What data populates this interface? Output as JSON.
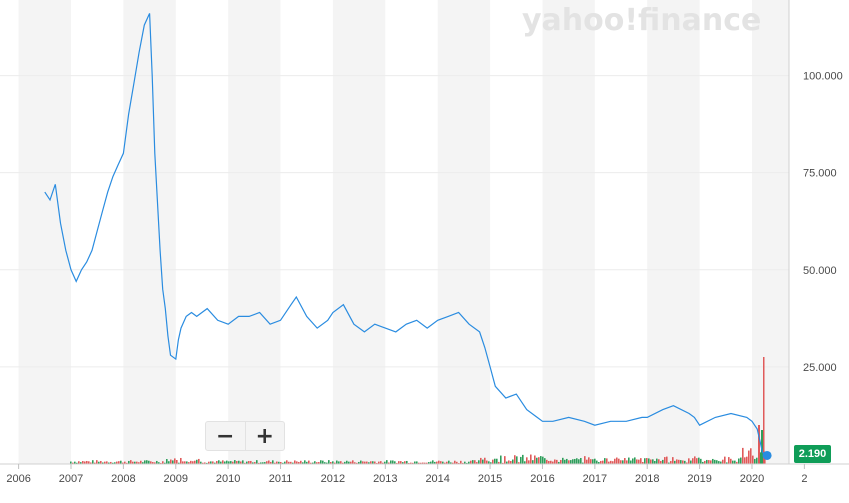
{
  "watermark": "yahoo!finance",
  "zoom": {
    "minus_label": "−",
    "plus_label": "+"
  },
  "price_badge": "2.190",
  "colors": {
    "line": "#2a8ce0",
    "band": "#f4f4f4",
    "volume_up": "#2e9e5b",
    "volume_down": "#e05a5a",
    "badge": "#0f9d58",
    "grid": "#ececec"
  },
  "chart_data": {
    "type": "line",
    "series": [
      {
        "values_x": [
          2006.5,
          2006.6,
          2006.7,
          2006.8,
          2006.9,
          2007.0,
          2007.1,
          2007.2,
          2007.3,
          2007.4,
          2007.5,
          2007.6,
          2007.7,
          2007.8,
          2007.9,
          2008.0,
          2008.1,
          2008.2,
          2008.3,
          2008.4,
          2008.5,
          2008.55,
          2008.6,
          2008.7,
          2008.75,
          2008.8,
          2008.85,
          2008.9,
          2009.0,
          2009.05,
          2009.1,
          2009.2,
          2009.3,
          2009.4,
          2009.6,
          2009.8,
          2010.0,
          2010.2,
          2010.4,
          2010.6,
          2010.8,
          2011.0,
          2011.2,
          2011.3,
          2011.5,
          2011.7,
          2011.9,
          2012.0,
          2012.2,
          2012.4,
          2012.6,
          2012.8,
          2013.0,
          2013.2,
          2013.4,
          2013.6,
          2013.8,
          2014.0,
          2014.2,
          2014.4,
          2014.6,
          2014.8,
          2014.9,
          2015.0,
          2015.1,
          2015.3,
          2015.5,
          2015.7,
          2015.9,
          2016.0,
          2016.2,
          2016.5,
          2016.8,
          2017.0,
          2017.3,
          2017.6,
          2017.9,
          2018.0,
          2018.3,
          2018.5,
          2018.8,
          2018.9,
          2019.0,
          2019.3,
          2019.6,
          2019.9,
          2020.0,
          2020.1,
          2020.15,
          2020.2,
          2020.25
        ],
        "values_y": [
          70,
          68,
          72,
          62,
          55,
          50,
          47,
          50,
          52,
          55,
          60,
          65,
          70,
          74,
          77,
          80,
          90,
          98,
          106,
          113,
          116,
          100,
          80,
          55,
          45,
          40,
          33,
          28,
          27,
          32,
          35,
          38,
          39,
          38,
          40,
          37,
          36,
          38,
          38,
          39,
          36,
          37,
          41,
          43,
          38,
          35,
          37,
          39,
          41,
          36,
          34,
          36,
          35,
          34,
          36,
          37,
          35,
          37,
          38,
          39,
          36,
          34,
          30,
          25,
          20,
          17,
          18,
          14,
          12,
          11,
          11,
          12,
          11,
          10,
          11,
          11,
          12,
          12,
          14,
          15,
          13,
          12,
          10,
          12,
          13,
          12,
          11,
          9,
          6,
          3,
          2.19
        ],
        "name": ""
      }
    ],
    "x_ticks": [
      "2006",
      "2007",
      "2008",
      "2009",
      "2010",
      "2011",
      "2012",
      "2013",
      "2014",
      "2015",
      "2016",
      "2017",
      "2018",
      "2019",
      "2020",
      "2"
    ],
    "y_ticks": [
      "25.000",
      "50.000",
      "75.000",
      "100.000"
    ],
    "xlim": [
      2006,
      2021
    ],
    "ylim": [
      0,
      118
    ],
    "last_value": 2.19,
    "grid": true,
    "legend": "none",
    "title": "",
    "xlabel": "",
    "ylabel": ""
  }
}
